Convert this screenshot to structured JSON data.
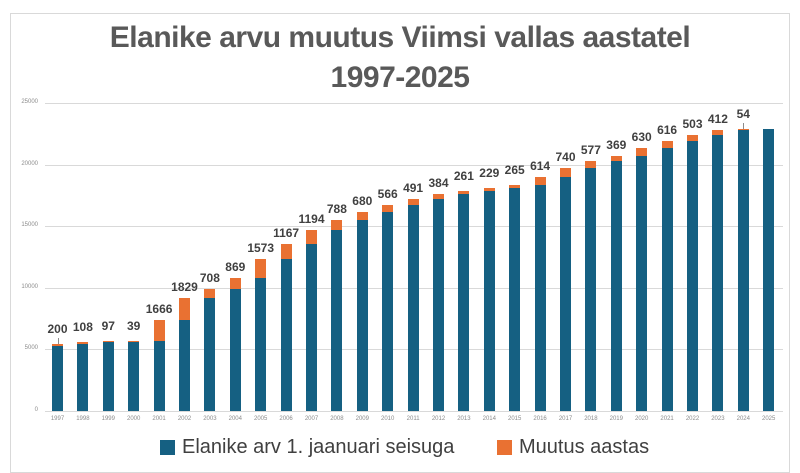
{
  "chart_data": {
    "type": "bar",
    "stacked": true,
    "title": "Elanike arvu muutus Viimsi vallas aastatel 1997-2025",
    "title_lines": [
      "Elanike arvu muutus Viimsi vallas aastatel",
      "1997-2025"
    ],
    "xlabel": "",
    "ylabel": "",
    "ylim": [
      0,
      25000
    ],
    "yticks": [
      0,
      5000,
      10000,
      15000,
      20000,
      25000
    ],
    "grid": true,
    "legend_position": "bottom",
    "categories": [
      "1997",
      "1998",
      "1999",
      "2000",
      "2001",
      "2002",
      "2003",
      "2004",
      "2005",
      "2006",
      "2007",
      "2008",
      "2009",
      "2010",
      "2011",
      "2012",
      "2013",
      "2014",
      "2015",
      "2016",
      "2017",
      "2018",
      "2019",
      "2020",
      "2021",
      "2022",
      "2023",
      "2024",
      "2025"
    ],
    "series": [
      {
        "name": "Elanike arv 1. jaanuari seisuga",
        "color": "#156082",
        "values": [
          5270,
          5470,
          5578,
          5675,
          5714,
          7380,
          9209,
          9917,
          10786,
          12359,
          13526,
          14720,
          15508,
          16188,
          16754,
          17245,
          17629,
          17890,
          18119,
          18384,
          18998,
          19738,
          20315,
          20684,
          21314,
          21930,
          22433,
          22845,
          22899
        ]
      },
      {
        "name": "Muutus aastas",
        "color": "#e97132",
        "values": [
          200,
          108,
          97,
          39,
          1666,
          1829,
          708,
          869,
          1573,
          1167,
          1194,
          788,
          680,
          566,
          491,
          384,
          261,
          229,
          265,
          614,
          740,
          577,
          369,
          630,
          616,
          503,
          412,
          54,
          null
        ],
        "data_labels": [
          "200",
          "108",
          "97",
          "39",
          "1666",
          "1829",
          "708",
          "869",
          "1573",
          "1167",
          "1194",
          "788",
          "680",
          "566",
          "491",
          "384",
          "261",
          "229",
          "265",
          "614",
          "740",
          "577",
          "369",
          "630",
          "616",
          "503",
          "412",
          "54",
          ""
        ]
      }
    ]
  },
  "legend": {
    "items": [
      {
        "label": "Elanike arv 1. jaanuari seisuga",
        "color": "#156082"
      },
      {
        "label": "Muutus aastas",
        "color": "#e97132"
      }
    ]
  }
}
